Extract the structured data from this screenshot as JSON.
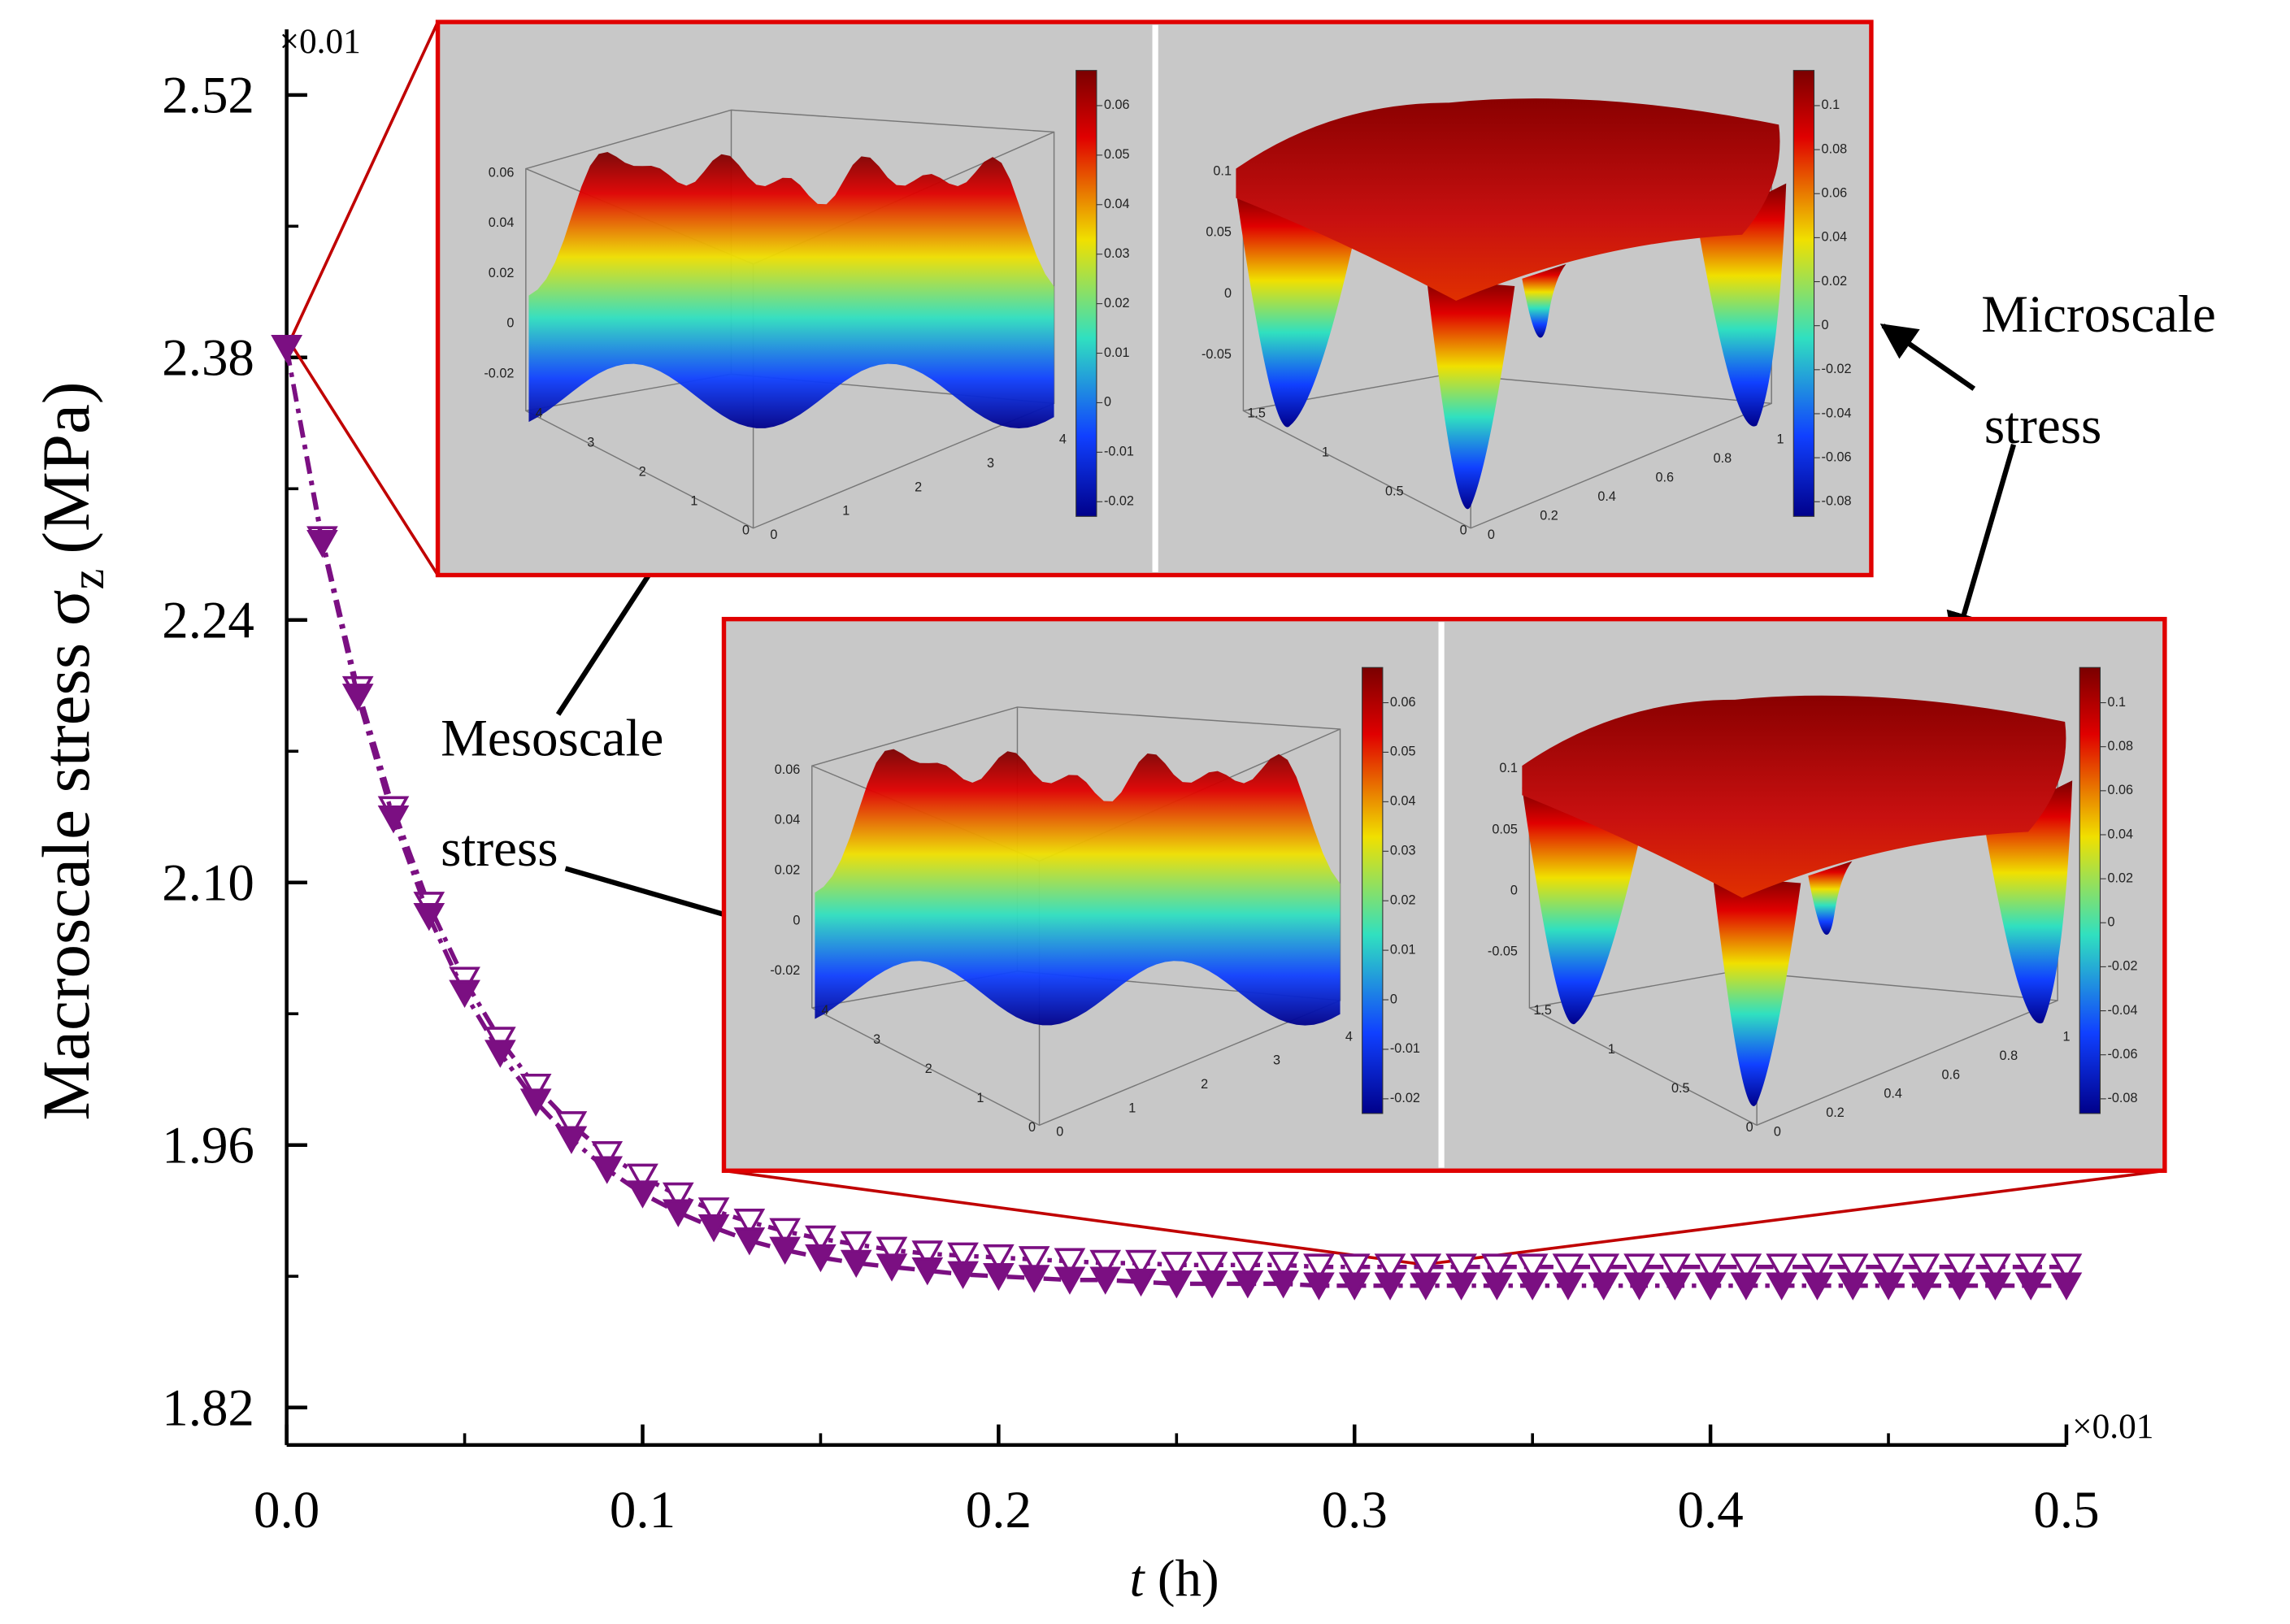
{
  "chart_data": {
    "type": "line",
    "y_label": [
      "Macroscale stress σ",
      "z",
      "(MPa)"
    ],
    "x_label": [
      "t",
      "(h)"
    ],
    "x_multiplier": "×0.01",
    "y_multiplier": "×0.01",
    "annotations": [
      [
        "Mesoscale",
        "stress"
      ],
      [
        "Microscale",
        "stress"
      ]
    ],
    "xlim": [
      0,
      0.5
    ],
    "ylim": [
      1.8,
      2.555
    ],
    "xticks": [
      {
        "value": 0,
        "label": "0.0"
      },
      0.1,
      0.2,
      0.3,
      0.4,
      0.5
    ],
    "yticks": [
      1.82,
      1.96,
      {
        "value": 2.1,
        "label": "2.10"
      },
      2.24,
      2.38,
      2.52
    ],
    "xminorticks": [
      0.05,
      0.15,
      0.25,
      0.35,
      0.45
    ],
    "yminorticks": [
      1.89,
      2.03,
      2.17,
      2.31,
      2.45
    ],
    "x": [
      0,
      0.01,
      0.02,
      0.03,
      0.04,
      0.05,
      0.06,
      0.07,
      0.08,
      0.09,
      0.1,
      0.11,
      0.12,
      0.13,
      0.14,
      0.15,
      0.16,
      0.17,
      0.18,
      0.19,
      0.2,
      0.21,
      0.22,
      0.23,
      0.24,
      0.25,
      0.26,
      0.27,
      0.28,
      0.29,
      0.3,
      0.31,
      0.32,
      0.33,
      0.34,
      0.35,
      0.36,
      0.37,
      0.38,
      0.39,
      0.4,
      0.41,
      0.42,
      0.43,
      0.44,
      0.45,
      0.46,
      0.47,
      0.48,
      0.49,
      0.5
    ],
    "series": [
      {
        "color": "#7b0f82",
        "marker": "open",
        "values": [
          2.385,
          2.283,
          2.203,
          2.139,
          2.088,
          2.048,
          2.016,
          1.991,
          1.971,
          1.955,
          1.943,
          1.933,
          1.925,
          1.919,
          1.914,
          1.91,
          1.907,
          1.904,
          1.902,
          1.901,
          1.9,
          1.899,
          1.898,
          1.897,
          1.897,
          1.896,
          1.896,
          1.896,
          1.896,
          1.895,
          1.895,
          1.895,
          1.895,
          1.895,
          1.895,
          1.895,
          1.895,
          1.895,
          1.895,
          1.895,
          1.895,
          1.895,
          1.895,
          1.895,
          1.895,
          1.895,
          1.895,
          1.895,
          1.895,
          1.895,
          1.895
        ]
      },
      {
        "color": "#7b0f82",
        "marker": "filled",
        "values": [
          2.385,
          2.281,
          2.199,
          2.134,
          2.082,
          2.041,
          2.009,
          1.983,
          1.963,
          1.947,
          1.934,
          1.924,
          1.916,
          1.909,
          1.904,
          1.9,
          1.897,
          1.895,
          1.893,
          1.891,
          1.89,
          1.889,
          1.888,
          1.888,
          1.887,
          1.886,
          1.886,
          1.886,
          1.886,
          1.885,
          1.885,
          1.885,
          1.885,
          1.885,
          1.885,
          1.885,
          1.885,
          1.885,
          1.885,
          1.885,
          1.885,
          1.885,
          1.885,
          1.885,
          1.885,
          1.885,
          1.885,
          1.885,
          1.885,
          1.885,
          1.885
        ]
      }
    ],
    "insets": [
      {
        "panels": [
          {
            "kind": "meso",
            "colorbar_ticks": [
              0.06,
              0.05,
              0.04,
              0.03,
              0.02,
              0.01,
              0,
              -0.01,
              -0.02
            ],
            "z_ticks": [
              0.06,
              0.04,
              0.02,
              0,
              -0.02
            ],
            "x_ticks": [
              4,
              3,
              2,
              1,
              0
            ],
            "y_ticks": [
              0,
              1,
              2,
              3,
              4
            ]
          },
          {
            "kind": "micro",
            "colorbar_ticks": [
              0.1,
              0.08,
              0.06,
              0.04,
              0.02,
              0,
              -0.02,
              -0.04,
              -0.06,
              -0.08
            ],
            "z_ticks": [
              0.1,
              0.05,
              0,
              -0.05
            ],
            "x_ticks": [
              1.5,
              1,
              0.5,
              0
            ],
            "y_ticks": [
              0,
              0.2,
              0.4,
              0.6,
              0.8,
              1
            ]
          }
        ]
      },
      {
        "panels": [
          {
            "kind": "meso",
            "colorbar_ticks": [
              0.06,
              0.05,
              0.04,
              0.03,
              0.02,
              0.01,
              0,
              -0.01,
              -0.02
            ],
            "z_ticks": [
              0.06,
              0.04,
              0.02,
              0,
              -0.02
            ],
            "x_ticks": [
              4,
              3,
              2,
              1,
              0
            ],
            "y_ticks": [
              0,
              1,
              2,
              3,
              4
            ]
          },
          {
            "kind": "micro",
            "colorbar_ticks": [
              0.1,
              0.08,
              0.06,
              0.04,
              0.02,
              0,
              -0.02,
              -0.04,
              -0.06,
              -0.08
            ],
            "z_ticks": [
              0.1,
              0.05,
              0,
              -0.05
            ],
            "x_ticks": [
              1.5,
              1,
              0.5,
              0
            ],
            "y_ticks": [
              0,
              0.2,
              0.4,
              0.6,
              0.8,
              1
            ]
          }
        ]
      }
    ]
  }
}
